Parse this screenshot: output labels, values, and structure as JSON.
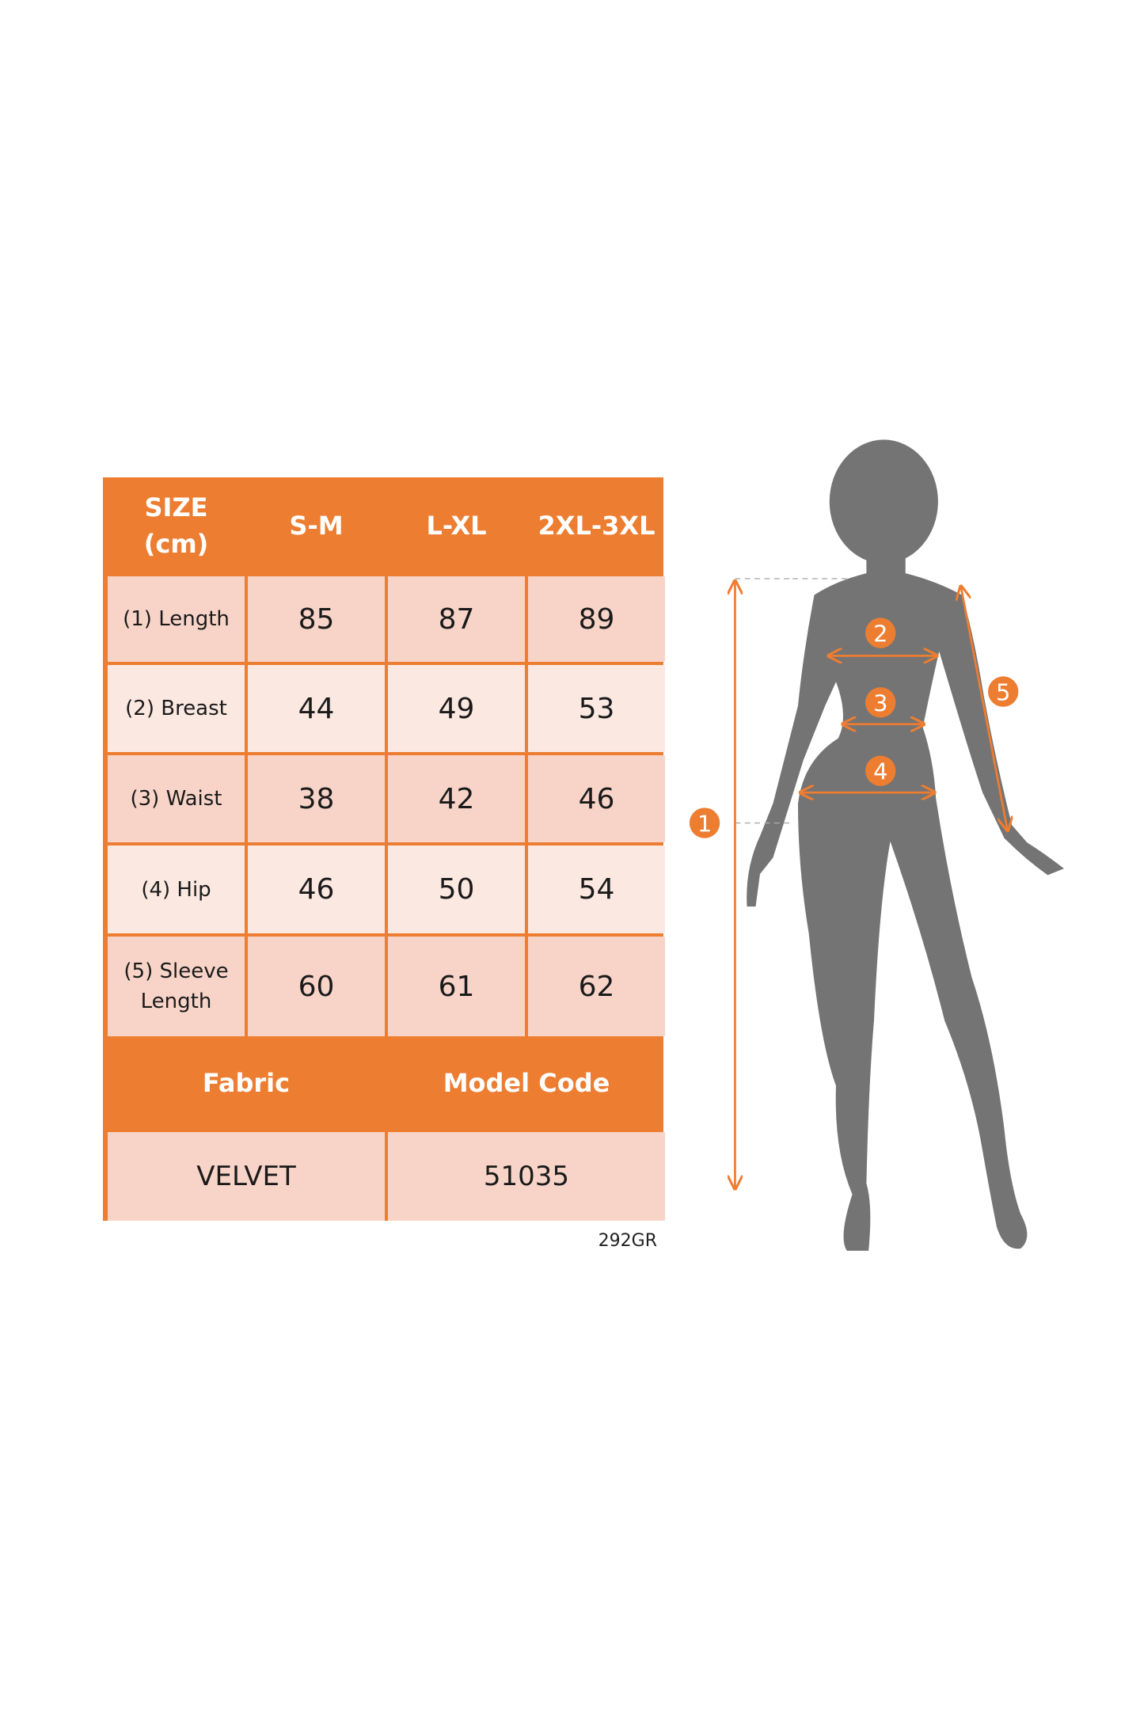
{
  "table": {
    "header": [
      "SIZE\n(cm)",
      "S-M",
      "L-XL",
      "2XL-3XL"
    ],
    "rows": [
      {
        "label": "(1) Length",
        "values": [
          "85",
          "87",
          "89"
        ]
      },
      {
        "label": "(2) Breast",
        "values": [
          "44",
          "49",
          "53"
        ]
      },
      {
        "label": "(3) Waist",
        "values": [
          "38",
          "42",
          "46"
        ]
      },
      {
        "label": "(4) Hip",
        "values": [
          "46",
          "50",
          "54"
        ]
      },
      {
        "label": "(5) Sleeve\nLength",
        "values": [
          "60",
          "61",
          "62"
        ]
      }
    ],
    "footer_headers": [
      "Fabric",
      "Model Code"
    ],
    "footer_values": [
      "VELVET",
      "51035"
    ]
  },
  "code_note": "292GR",
  "figure": {
    "markers": [
      "1",
      "2",
      "3",
      "4",
      "5"
    ]
  },
  "colors": {
    "accent": "#ED7D31",
    "cell_dark": "#F8D4C8",
    "cell_light": "#FBE8E1",
    "silhouette": "#747474"
  }
}
